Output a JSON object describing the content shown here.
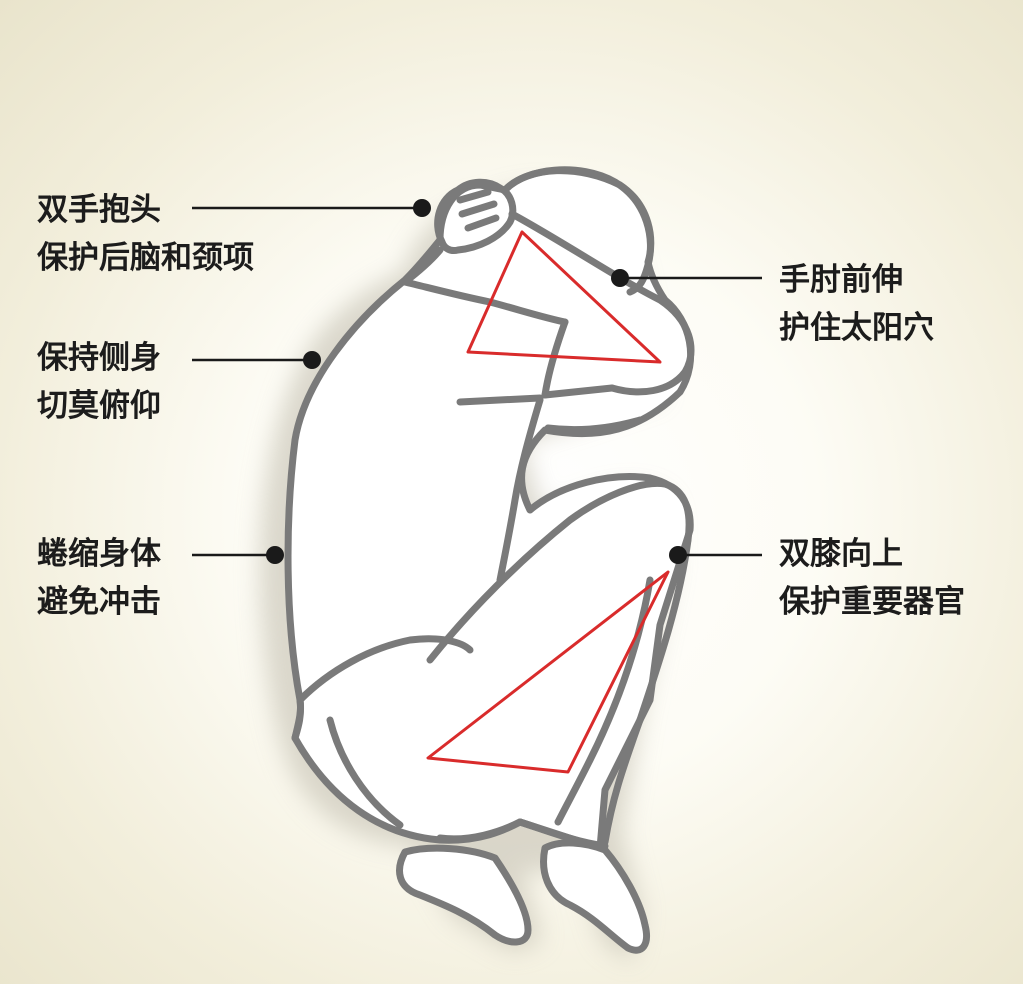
{
  "diagram": {
    "callouts": {
      "hands_head": {
        "line1": "双手抱头",
        "line2": "保护后脑和颈项"
      },
      "side_body": {
        "line1": "保持侧身",
        "line2": "切莫俯仰"
      },
      "curl_body": {
        "line1": "蜷缩身体",
        "line2": "避免冲击"
      },
      "elbow": {
        "line1": "手肘前伸",
        "line2": "护住太阳穴"
      },
      "knees": {
        "line1": "双膝向上",
        "line2": "保护重要器官"
      }
    },
    "colors": {
      "outline": "#7a7a7a",
      "highlight_triangle": "#d92b2b",
      "leader_line": "#1a1a1a",
      "body_fill": "#ffffff",
      "shadow": "#d3d0c4"
    }
  }
}
